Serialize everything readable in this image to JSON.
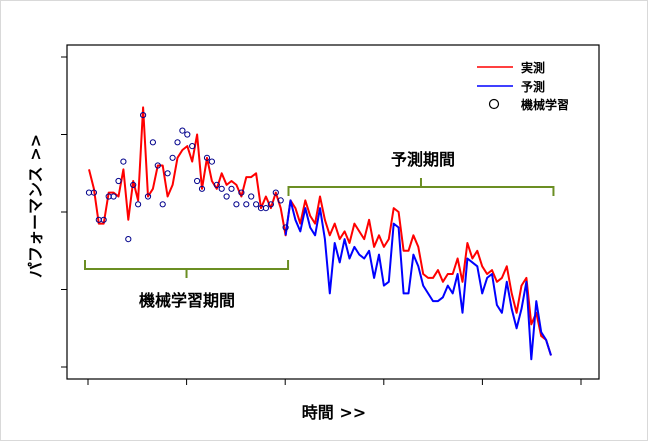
{
  "chart_data": {
    "type": "line",
    "title": "",
    "xlabel": "時間 >>",
    "ylabel": "パフォーマンス >>",
    "xlim": [
      0,
      105
    ],
    "ylim": [
      0,
      100
    ],
    "grid": false,
    "legend_position": "top-right",
    "x_ticks": [
      0,
      20,
      40,
      60,
      80,
      100
    ],
    "y_ticks": [
      0,
      20,
      40,
      60,
      80
    ],
    "annotations": {
      "learning_period": "機械学習期間",
      "prediction_period": "予測期間"
    },
    "learning_range": [
      0,
      40.5
    ],
    "prediction_range": [
      41,
      94.5
    ],
    "colors": {
      "actual": "#ff0000",
      "predicted": "#0000ff",
      "ml_points": "#00008b",
      "bracket": "#6b8e23"
    },
    "series": [
      {
        "name": "実測",
        "style": "line",
        "x": [
          0,
          1,
          2,
          3,
          4,
          5,
          6,
          7,
          8,
          9,
          10,
          11,
          12,
          13,
          14,
          15,
          16,
          17,
          18,
          19,
          20,
          21,
          22,
          23,
          24,
          25,
          26,
          27,
          28,
          29,
          30,
          31,
          32,
          33,
          34,
          35,
          36,
          37,
          38,
          39,
          40,
          41,
          42,
          43,
          44,
          45,
          46,
          47,
          48,
          49,
          50,
          51,
          52,
          53,
          54,
          55,
          56,
          57,
          58,
          59,
          60,
          61,
          62,
          63,
          64,
          65,
          66,
          67,
          68,
          69,
          70,
          71,
          72,
          73,
          74,
          75,
          76,
          77,
          78,
          79,
          80,
          81,
          82,
          83,
          84,
          85,
          86,
          87,
          88,
          89,
          90,
          91,
          92,
          93,
          94
        ],
        "values": [
          51,
          46,
          37,
          37,
          45,
          45,
          44,
          51,
          38,
          48,
          43,
          67,
          44,
          46,
          52,
          52,
          44,
          47,
          54,
          56,
          57,
          53,
          60,
          46,
          54,
          48,
          46,
          50,
          47,
          48,
          47,
          44,
          49,
          49,
          50,
          41,
          44,
          41,
          45,
          41,
          34,
          43,
          41,
          37,
          43,
          39,
          37,
          44,
          38,
          34,
          37,
          33,
          35,
          32,
          37,
          35,
          33,
          38,
          31,
          34,
          31,
          33,
          41,
          40,
          30,
          30,
          34,
          31,
          24,
          23,
          23,
          25,
          22,
          24,
          24,
          28,
          22,
          32,
          28,
          30,
          26,
          24,
          25,
          22,
          23,
          26,
          19,
          14,
          21,
          23,
          11,
          14,
          8,
          7,
          3
        ]
      },
      {
        "name": "予測",
        "style": "line",
        "x": [
          40,
          41,
          42,
          43,
          44,
          45,
          46,
          47,
          48,
          49,
          50,
          51,
          52,
          53,
          54,
          55,
          56,
          57,
          58,
          59,
          60,
          61,
          62,
          63,
          64,
          65,
          66,
          67,
          68,
          69,
          70,
          71,
          72,
          73,
          74,
          75,
          76,
          77,
          78,
          79,
          80,
          81,
          82,
          83,
          84,
          85,
          86,
          87,
          88,
          89,
          90,
          91,
          92,
          93,
          94
        ],
        "values": [
          34,
          43,
          38,
          35,
          41,
          36,
          34,
          41,
          33,
          19,
          32,
          27,
          33,
          28,
          31,
          29,
          28,
          30,
          23,
          29,
          21,
          22,
          37,
          36,
          19,
          19,
          29,
          26,
          21,
          19,
          17,
          17,
          18,
          21,
          19,
          24,
          14,
          28,
          27,
          26,
          19,
          23,
          24,
          16,
          14,
          22,
          15,
          10,
          15,
          22,
          2,
          17,
          9,
          7,
          3
        ]
      },
      {
        "name": "機械学習",
        "style": "points",
        "x": [
          0,
          1,
          2,
          3,
          4,
          5,
          6,
          7,
          8,
          9,
          10,
          11,
          12,
          13,
          14,
          15,
          16,
          17,
          18,
          19,
          20,
          21,
          22,
          23,
          24,
          25,
          26,
          27,
          28,
          29,
          30,
          31,
          32,
          33,
          34,
          35,
          36,
          37,
          38,
          39,
          40
        ],
        "values": [
          45,
          45,
          38,
          38,
          44,
          44,
          48,
          53,
          33,
          47,
          42,
          65,
          44,
          58,
          52,
          42,
          50,
          54,
          58,
          61,
          60,
          57,
          48,
          46,
          54,
          53,
          47,
          46,
          44,
          46,
          42,
          45,
          42,
          44,
          42,
          41,
          41,
          42,
          45,
          43,
          36
        ]
      }
    ]
  }
}
